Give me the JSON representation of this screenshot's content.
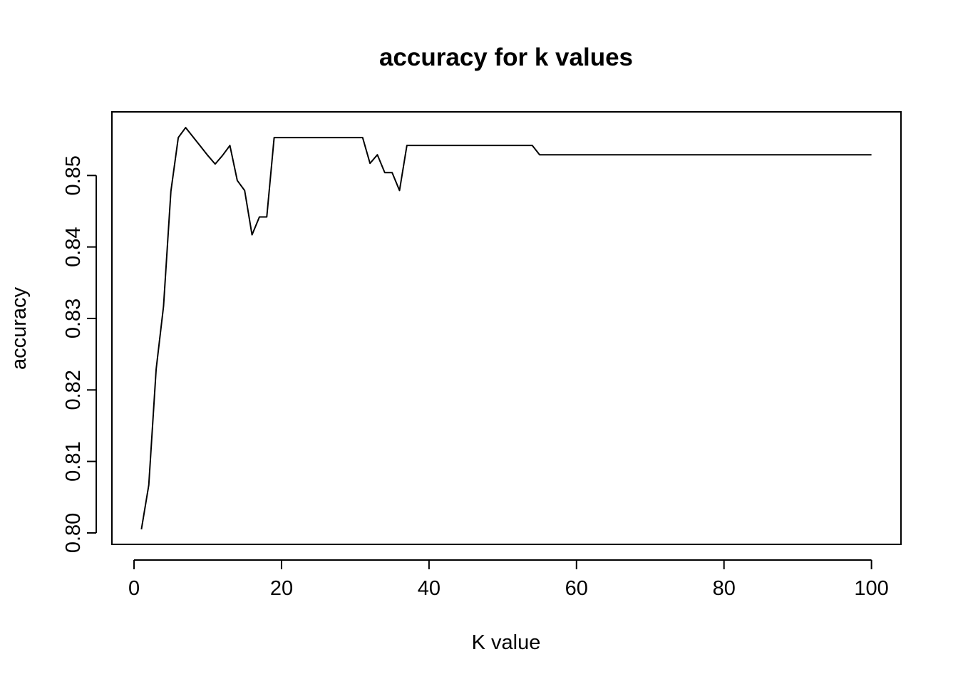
{
  "chart_data": {
    "type": "line",
    "title": "accuracy for k values",
    "xlabel": "K value",
    "ylabel": "accuracy",
    "xlim": [
      -3.0,
      104.0
    ],
    "ylim": [
      0.7984,
      0.8589
    ],
    "xticks": [
      0,
      20,
      40,
      60,
      80,
      100
    ],
    "xtick_labels": [
      "0",
      "20",
      "40",
      "60",
      "80",
      "100"
    ],
    "yticks": [
      0.8,
      0.81,
      0.82,
      0.83,
      0.84,
      0.85
    ],
    "ytick_labels": [
      "0.80",
      "0.81",
      "0.82",
      "0.83",
      "0.84",
      "0.85"
    ],
    "grid": false,
    "legend": "none",
    "line_color": "#000000",
    "series": [
      {
        "x": [
          1,
          2,
          3,
          4,
          5,
          6,
          7,
          8,
          9,
          10,
          11,
          12,
          13,
          14,
          15,
          16,
          17,
          18,
          19,
          20,
          21,
          22,
          23,
          24,
          25,
          26,
          27,
          28,
          29,
          30,
          31,
          32,
          33,
          34,
          35,
          36,
          37,
          38,
          39,
          40,
          41,
          42,
          43,
          44,
          45,
          46,
          47,
          48,
          49,
          50,
          51,
          52,
          53,
          54,
          55,
          56,
          57,
          58,
          59,
          60,
          61,
          62,
          63,
          64,
          65,
          66,
          67,
          68,
          69,
          70,
          71,
          72,
          73,
          74,
          75,
          76,
          77,
          78,
          79,
          80,
          81,
          82,
          83,
          84,
          85,
          86,
          87,
          88,
          89,
          90,
          91,
          92,
          93,
          94,
          95,
          96,
          97,
          98,
          99,
          100
        ],
        "values": [
          0.8005,
          0.8067,
          0.8229,
          0.8317,
          0.8478,
          0.8553,
          0.8567,
          0.8554,
          0.8541,
          0.8528,
          0.8516,
          0.8528,
          0.8542,
          0.8493,
          0.8479,
          0.8417,
          0.8442,
          0.8442,
          0.8553,
          0.8553,
          0.8553,
          0.8553,
          0.8553,
          0.8553,
          0.8553,
          0.8553,
          0.8553,
          0.8553,
          0.8553,
          0.8553,
          0.8553,
          0.8517,
          0.8529,
          0.8504,
          0.8504,
          0.8479,
          0.8542,
          0.8542,
          0.8542,
          0.8542,
          0.8542,
          0.8542,
          0.8542,
          0.8542,
          0.8542,
          0.8542,
          0.8542,
          0.8542,
          0.8542,
          0.8542,
          0.8542,
          0.8542,
          0.8542,
          0.8542,
          0.8529,
          0.8529,
          0.8529,
          0.8529,
          0.8529,
          0.8529,
          0.8529,
          0.8529,
          0.8529,
          0.8529,
          0.8529,
          0.8529,
          0.8529,
          0.8529,
          0.8529,
          0.8529,
          0.8529,
          0.8529,
          0.8529,
          0.8529,
          0.8529,
          0.8529,
          0.8529,
          0.8529,
          0.8529,
          0.8529,
          0.8529,
          0.8529,
          0.8529,
          0.8529,
          0.8529,
          0.8529,
          0.8529,
          0.8529,
          0.8529,
          0.8529,
          0.8529,
          0.8529,
          0.8529,
          0.8529,
          0.8529,
          0.8529,
          0.8529,
          0.8529,
          0.8529,
          0.8529
        ]
      }
    ]
  }
}
